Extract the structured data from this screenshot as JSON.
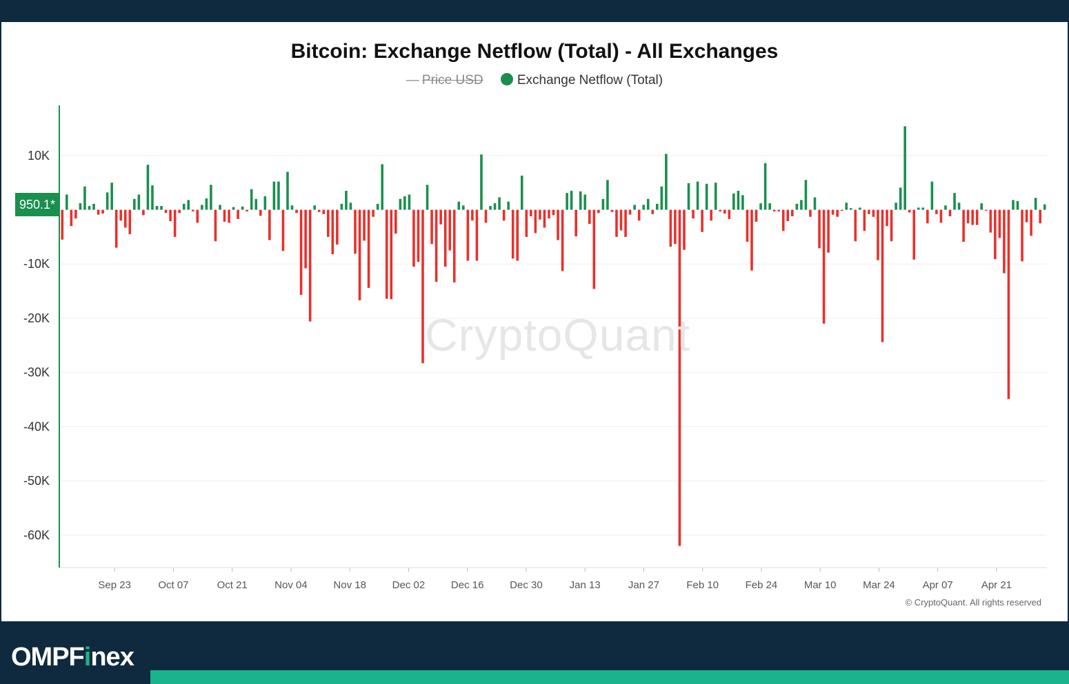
{
  "colors": {
    "positive": "#1a8f4e",
    "negative": "#e8302b",
    "axis_line": "#1a8f4e",
    "brand_accent": "#19b38e"
  },
  "chart_data": {
    "type": "bar",
    "title": "Bitcoin: Exchange Netflow (Total) - All Exchanges",
    "legend": {
      "placement": "top-center",
      "entries": [
        {
          "label": "Price USD",
          "hidden": true
        },
        {
          "label": "Exchange Netflow (Total)"
        }
      ]
    },
    "current_value_label": "950.1*",
    "x_ticks": [
      "Sep 23",
      "Oct 07",
      "Oct 21",
      "Nov 04",
      "Nov 18",
      "Dec 02",
      "Dec 16",
      "Dec 30",
      "Jan 13",
      "Jan 27",
      "Feb 10",
      "Feb 24",
      "Mar 10",
      "Mar 24",
      "Apr 07",
      "Apr 21"
    ],
    "y_ticks": [
      "10K",
      "-10K",
      "-20K",
      "-30K",
      "-40K",
      "-50K",
      "-60K"
    ],
    "ylim": [
      -66000,
      19000
    ],
    "grid": true,
    "x_range": [
      "2024-09-10",
      "2025-05-03"
    ],
    "series": [
      {
        "name": "Exchange Netflow (Total)",
        "values": [
          -5500,
          2800,
          -3000,
          -1600,
          1200,
          4300,
          700,
          1100,
          -900,
          -700,
          3200,
          5000,
          -7000,
          -2000,
          -3300,
          -4500,
          2000,
          2800,
          -1000,
          8300,
          4500,
          700,
          700,
          -600,
          -2100,
          -5000,
          -600,
          1100,
          1800,
          -300,
          -2400,
          900,
          2100,
          4600,
          -5800,
          900,
          -2200,
          -2400,
          500,
          -1700,
          600,
          -300,
          3800,
          2000,
          -1100,
          2500,
          -5600,
          5200,
          5200,
          -7600,
          7000,
          800,
          -600,
          -15700,
          -10800,
          -20600,
          800,
          -400,
          -800,
          -5000,
          -8200,
          -6400,
          1100,
          3500,
          1300,
          -8100,
          -16700,
          -5700,
          -14400,
          -1300,
          1100,
          8400,
          -16400,
          -16500,
          -4400,
          2000,
          2500,
          2800,
          -10500,
          -9600,
          -28300,
          4600,
          -6300,
          -13300,
          -2700,
          -10500,
          -7500,
          -13400,
          1500,
          800,
          -9400,
          -2000,
          -9400,
          10200,
          -2400,
          700,
          1200,
          2300,
          -2000,
          1500,
          -9000,
          -9400,
          6300,
          -5000,
          -1200,
          -4300,
          -1800,
          -3300,
          -1600,
          -1000,
          -5600,
          -11300,
          3100,
          3500,
          -4900,
          3400,
          2800,
          -2600,
          -14600,
          -600,
          2000,
          5500,
          -400,
          -5000,
          -3800,
          -5000,
          -900,
          900,
          -2000,
          900,
          2000,
          -800,
          1100,
          4300,
          10300,
          -6800,
          -6300,
          -62000,
          -7400,
          4900,
          -1600,
          5200,
          -4100,
          4800,
          -2000,
          5000,
          -300,
          -700,
          -1700,
          3000,
          3500,
          2700,
          -5900,
          -11200,
          -2200,
          1200,
          8600,
          1200,
          -300,
          -300,
          -3900,
          -2100,
          -1200,
          1100,
          1800,
          5500,
          -1300,
          2300,
          -7100,
          -21000,
          -7900,
          -900,
          -1300,
          -200,
          1300,
          300,
          -5800,
          400,
          -3900,
          -800,
          -1300,
          -9300,
          -24400,
          -3000,
          -5800,
          1300,
          4100,
          15400,
          -500,
          -9200,
          400,
          400,
          -2500,
          5200,
          -800,
          -2400,
          800,
          -1200,
          3100,
          1300,
          -5900,
          -2500,
          -2800,
          -2800,
          1200,
          -200,
          -4200,
          -9100,
          -5200,
          -11700,
          -34900,
          1800,
          1600,
          -9500,
          -2300,
          -4800,
          2200,
          -2500,
          1000
        ]
      }
    ]
  },
  "watermark": "CryptoQuant",
  "copyright": "© CryptoQuant. All rights reserved",
  "footer": {
    "brand_prefix": "OMPF",
    "brand_accent_letter": "i",
    "brand_suffix": "nex"
  }
}
